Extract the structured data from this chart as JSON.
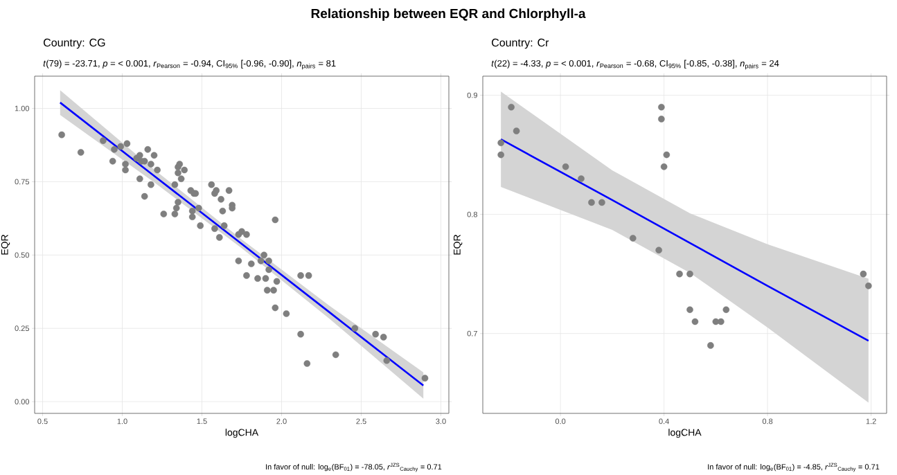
{
  "chart_data": [
    {
      "type": "scatter",
      "title": "Country: CG",
      "subtitle": "*t*(79) = -23.71, *p* = < 0.001, *r*$_{Pearson}$ = -0.94, CI$_{95%}$ [-0.96, -0.90], *n*$_{pairs}$ = 81",
      "annotations": [
        "Relationship between EQR and Chlorphyll-a",
        "In favor of null: log$_{e}$(BF$_{01}$) = -78.05, *r*$^{JZS}$$_{Cauchy}$ = 0.71"
      ],
      "xlabel": "logCHA",
      "ylabel": "EQR",
      "grid": true,
      "xlim": [
        0.45,
        3.05
      ],
      "ylim": [
        -0.04,
        1.11
      ],
      "xticks": [
        {
          "value": 0.5,
          "label": "0.5"
        },
        {
          "value": 1,
          "label": "1.0"
        },
        {
          "value": 1.5,
          "label": "1.5"
        },
        {
          "value": 2,
          "label": "2.0"
        },
        {
          "value": 2.5,
          "label": "2.5"
        },
        {
          "value": 3,
          "label": "3.0"
        }
      ],
      "yticks": [
        {
          "value": 0,
          "label": "0.00"
        },
        {
          "value": 0.25,
          "label": "0.25"
        },
        {
          "value": 0.5,
          "label": "0.50"
        },
        {
          "value": 0.75,
          "label": "0.75"
        },
        {
          "value": 1,
          "label": "1.00"
        }
      ],
      "series": [
        {
          "marker": "circle",
          "color": "#7f7f7f",
          "x": [
            0.62,
            0.74,
            0.88,
            0.94,
            0.95,
            0.99,
            1.03,
            1.02,
            1.02,
            1.11,
            1.14,
            1.09,
            1.11,
            1.12,
            1.14,
            1.16,
            1.18,
            1.2,
            1.18,
            1.22,
            1.26,
            1.33,
            1.33,
            1.34,
            1.35,
            1.35,
            1.36,
            1.35,
            1.37,
            1.39,
            1.43,
            1.45,
            1.46,
            1.44,
            1.44,
            1.48,
            1.49,
            1.56,
            1.58,
            1.59,
            1.58,
            1.61,
            1.62,
            1.63,
            1.64,
            1.67,
            1.69,
            1.69,
            1.73,
            1.75,
            1.78,
            1.73,
            1.81,
            1.89,
            1.87,
            1.92,
            1.92,
            1.78,
            1.85,
            1.9,
            1.97,
            1.91,
            1.95,
            1.96,
            2.03,
            2.12,
            2.17,
            2.12,
            2.16,
            2.34,
            2.46,
            2.59,
            2.64,
            2.66,
            2.9,
            1.96
          ],
          "values": [
            0.91,
            0.85,
            0.89,
            0.82,
            0.86,
            0.87,
            0.88,
            0.81,
            0.79,
            0.76,
            0.7,
            0.83,
            0.84,
            0.82,
            0.82,
            0.86,
            0.81,
            0.84,
            0.74,
            0.79,
            0.64,
            0.74,
            0.64,
            0.66,
            0.68,
            0.8,
            0.81,
            0.78,
            0.76,
            0.79,
            0.72,
            0.71,
            0.71,
            0.65,
            0.63,
            0.66,
            0.6,
            0.74,
            0.71,
            0.72,
            0.59,
            0.56,
            0.69,
            0.65,
            0.6,
            0.72,
            0.67,
            0.66,
            0.57,
            0.58,
            0.57,
            0.48,
            0.47,
            0.5,
            0.48,
            0.48,
            0.45,
            0.43,
            0.42,
            0.42,
            0.41,
            0.38,
            0.38,
            0.32,
            0.3,
            0.43,
            0.43,
            0.23,
            0.13,
            0.16,
            0.25,
            0.23,
            0.22,
            0.14,
            0.08,
            0.62
          ]
        },
        {
          "type": "line",
          "marker": "none",
          "line_style": "solid",
          "color": "#0000ff",
          "x": [
            0.61,
            1.2,
            1.75,
            2.3,
            2.89
          ],
          "values": [
            1.02,
            0.77,
            0.538,
            0.305,
            0.055
          ],
          "lower": [
            0.978,
            0.748,
            0.523,
            0.283,
            0.01
          ],
          "upper": [
            1.062,
            0.792,
            0.553,
            0.327,
            0.1
          ]
        }
      ]
    },
    {
      "type": "scatter",
      "title": "Country: Cr",
      "subtitle": "*t*(22) = -4.33, *p* = < 0.001, *r*$_{Pearson}$ = -0.68, CI$_{95%}$ [-0.85, -0.38], *n*$_{pairs}$ = 24",
      "annotations": [
        "In favor of null: log$_{e}$(BF$_{01}$) = -4.85, *r*$^{JZS}$$_{Cauchy}$ = 0.71"
      ],
      "xlabel": "logCHA",
      "ylabel": "EQR",
      "grid": true,
      "xlim": [
        -0.3,
        1.26
      ],
      "ylim": [
        0.633,
        0.916
      ],
      "xticks": [
        {
          "value": 0,
          "label": "0.0"
        },
        {
          "value": 0.4,
          "label": "0.4"
        },
        {
          "value": 0.8,
          "label": "0.8"
        },
        {
          "value": 1.2,
          "label": "1.2"
        }
      ],
      "yticks": [
        {
          "value": 0.7,
          "label": "0.7"
        },
        {
          "value": 0.8,
          "label": "0.8"
        },
        {
          "value": 0.9,
          "label": "0.9"
        }
      ],
      "series": [
        {
          "marker": "circle",
          "color": "#7f7f7f",
          "x": [
            -0.19,
            -0.17,
            -0.23,
            -0.23,
            0.02,
            0.08,
            0.12,
            0.16,
            0.28,
            0.38,
            0.46,
            0.5,
            0.5,
            0.52,
            0.6,
            0.62,
            0.64,
            0.58,
            0.39,
            0.39,
            0.41,
            0.4,
            1.17,
            1.19
          ],
          "values": [
            0.89,
            0.87,
            0.86,
            0.85,
            0.84,
            0.83,
            0.81,
            0.81,
            0.78,
            0.77,
            0.75,
            0.75,
            0.72,
            0.71,
            0.71,
            0.71,
            0.72,
            0.69,
            0.89,
            0.88,
            0.85,
            0.84,
            0.75,
            0.74
          ]
        },
        {
          "type": "line",
          "marker": "none",
          "line_style": "solid",
          "color": "#0000ff",
          "x": [
            -0.23,
            0.2,
            0.5,
            0.8,
            1.19
          ],
          "values": [
            0.863,
            0.812,
            0.776,
            0.74,
            0.694
          ],
          "lower": [
            0.823,
            0.787,
            0.751,
            0.705,
            0.642
          ],
          "upper": [
            0.903,
            0.837,
            0.801,
            0.775,
            0.746
          ]
        }
      ]
    }
  ]
}
